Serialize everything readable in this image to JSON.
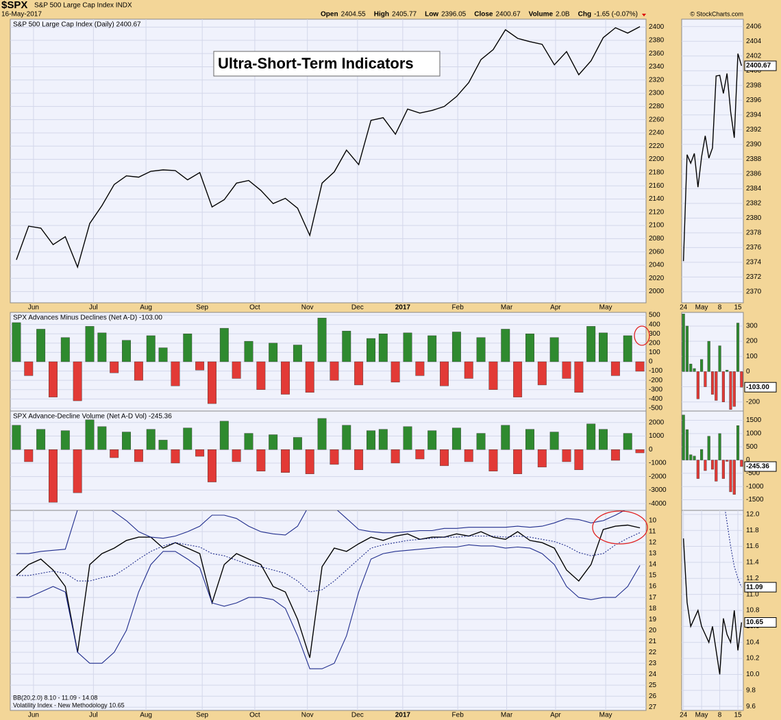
{
  "header": {
    "symbol": "$SPX",
    "name": "S&P 500 Large Cap Index INDX",
    "date": "16-May-2017",
    "copyright": "© StockCharts.com",
    "quote": [
      {
        "label": "Open",
        "value": "2404.55"
      },
      {
        "label": "High",
        "value": "2405.77"
      },
      {
        "label": "Low",
        "value": "2396.05"
      },
      {
        "label": "Close",
        "value": "2400.67"
      },
      {
        "label": "Volume",
        "value": "2.0B"
      },
      {
        "label": "Chg",
        "value": "-1.65 (-0.07%)"
      }
    ]
  },
  "chart_data": [
    {
      "type": "line",
      "title": "S&P 500 Large Cap Index (Daily) 2400.67",
      "annotation": "Ultra-Short-Term Indicators",
      "badges": [
        "2400.67"
      ],
      "ylim": [
        1983,
        2412
      ],
      "yticks": [
        2000,
        2020,
        2040,
        2060,
        2080,
        2100,
        2120,
        2140,
        2160,
        2180,
        2200,
        2220,
        2240,
        2260,
        2280,
        2300,
        2320,
        2340,
        2360,
        2380,
        2400
      ],
      "xlim": [
        -0.5,
        51.5
      ],
      "xticks": [
        {
          "value": 1.4,
          "label": "Jun"
        },
        {
          "value": 6.3,
          "label": "Jul"
        },
        {
          "value": 10.6,
          "label": "Aug"
        },
        {
          "value": 15.2,
          "label": "Sep"
        },
        {
          "value": 19.5,
          "label": "Oct"
        },
        {
          "value": 23.8,
          "label": "Nov"
        },
        {
          "value": 27.9,
          "label": "Dec"
        },
        {
          "value": 31.6,
          "label": "2017"
        },
        {
          "value": 36.1,
          "label": "Feb"
        },
        {
          "value": 40.1,
          "label": "Mar"
        },
        {
          "value": 44.1,
          "label": "Apr"
        },
        {
          "value": 48.2,
          "label": "May"
        }
      ],
      "grid": true,
      "series": [
        {
          "color": "#000000",
          "values": [
            2048,
            2099,
            2096,
            2071,
            2083,
            2037,
            2103,
            2130,
            2162,
            2175,
            2173,
            2182,
            2184,
            2183,
            2169,
            2180,
            2128,
            2139,
            2164,
            2168,
            2153,
            2133,
            2141,
            2126,
            2085,
            2164,
            2181,
            2214,
            2192,
            2259,
            2263,
            2238,
            2276,
            2270,
            2274,
            2280,
            2295,
            2316,
            2351,
            2366,
            2396,
            2383,
            2378,
            2374,
            2343,
            2363,
            2328,
            2349,
            2384,
            2399,
            2391,
            2400.67
          ]
        }
      ],
      "side": {
        "ylim": [
          2368.5,
          2407
        ],
        "yticks": [
          2370,
          2372,
          2374,
          2376,
          2378,
          2380,
          2382,
          2384,
          2386,
          2388,
          2390,
          2392,
          2394,
          2396,
          2398,
          2400,
          2402,
          2404,
          2406
        ],
        "xlim": [
          -0.5,
          16.5
        ],
        "series": [
          {
            "color": "#000000",
            "values": [
              2374.15,
              2388.61,
              2387.45,
              2388.77,
              2384.2,
              2388.33,
              2391.17,
              2388.13,
              2389.52,
              2399.29,
              2399.38,
              2396.92,
              2399.63,
              2394.44,
              2390.9,
              2402.32,
              2400.67
            ]
          }
        ]
      }
    },
    {
      "type": "bar",
      "title": "SPX Advances Minus Declines (Net A-D) -103.00",
      "badges": [
        "-103.00"
      ],
      "ylim": [
        -530,
        530
      ],
      "yticks": [
        -500,
        -400,
        -300,
        -200,
        -100,
        0,
        100,
        200,
        300,
        400,
        500
      ],
      "xlim": [
        -0.5,
        51.5
      ],
      "grid": true,
      "colors": {
        "positive": "#2f8a2f",
        "negative": "#e23a36"
      },
      "values": [
        420,
        -150,
        350,
        -380,
        260,
        -420,
        380,
        310,
        -120,
        230,
        -200,
        280,
        150,
        -260,
        300,
        -90,
        -450,
        360,
        -180,
        220,
        -300,
        200,
        -350,
        180,
        -330,
        470,
        -200,
        330,
        -250,
        250,
        300,
        -220,
        310,
        -150,
        280,
        -260,
        320,
        -180,
        260,
        -300,
        350,
        -380,
        300,
        -250,
        260,
        -180,
        -330,
        380,
        310,
        -150,
        280,
        -103
      ],
      "side": {
        "ylim": [
          -260,
          390
        ],
        "yticks": [
          -200,
          -100,
          0,
          100,
          200,
          300
        ],
        "xlim": [
          -0.5,
          16.5
        ],
        "values": [
          380,
          300,
          50,
          20,
          -180,
          80,
          -100,
          200,
          -150,
          -190,
          170,
          -200,
          10,
          -250,
          -230,
          320,
          -103
        ]
      }
    },
    {
      "type": "bar",
      "title": "SPX Advance-Decline Volume (Net A-D Vol) -245.36",
      "badges": [
        "-245.36"
      ],
      "ylim": [
        -4500,
        2850
      ],
      "yticks": [
        -4000,
        -3000,
        -2000,
        -1000,
        0,
        1000,
        2000
      ],
      "xlim": [
        -0.5,
        51.5
      ],
      "grid": true,
      "colors": {
        "positive": "#2f8a2f",
        "negative": "#e23a36"
      },
      "values": [
        1800,
        -900,
        1500,
        -3900,
        1400,
        -3200,
        2200,
        1700,
        -600,
        1300,
        -900,
        1500,
        700,
        -1000,
        1600,
        -500,
        -2400,
        2100,
        -900,
        1200,
        -1600,
        1100,
        -1700,
        900,
        -1800,
        2300,
        -1100,
        1800,
        -1500,
        1400,
        1500,
        -1000,
        1700,
        -700,
        1400,
        -1200,
        1600,
        -900,
        1200,
        -1600,
        1800,
        -1800,
        1500,
        -1300,
        1300,
        -900,
        -1500,
        1900,
        1500,
        -800,
        1200,
        -245.36
      ],
      "side": {
        "ylim": [
          -1900,
          1850
        ],
        "yticks": [
          -1500,
          -1000,
          -500,
          0,
          500,
          1000,
          1500
        ],
        "xlim": [
          -0.5,
          16.5
        ],
        "values": [
          1700,
          1150,
          200,
          150,
          -700,
          400,
          -400,
          900,
          -350,
          -800,
          1000,
          -700,
          -50,
          -1200,
          -1300,
          1300,
          -245.36
        ]
      }
    },
    {
      "type": "line",
      "legend": [
        "BB(20,2.0) 8.10 - 11.09 - 14.08",
        "Volatility Index - New Methodology 10.65"
      ],
      "badges": [
        "10.65",
        "11.09"
      ],
      "inverted": true,
      "ylim": [
        9.06,
        27.3
      ],
      "yticks": [
        10,
        11,
        12,
        13,
        14,
        15,
        16,
        17,
        18,
        19,
        20,
        21,
        22,
        23,
        24,
        25,
        26,
        27
      ],
      "xlim": [
        -0.5,
        51.5
      ],
      "grid": true,
      "xticks": [
        {
          "value": 1.4,
          "label": "Jun"
        },
        {
          "value": 6.3,
          "label": "Jul"
        },
        {
          "value": 10.6,
          "label": "Aug"
        },
        {
          "value": 15.2,
          "label": "Sep"
        },
        {
          "value": 19.5,
          "label": "Oct"
        },
        {
          "value": 23.8,
          "label": "Nov"
        },
        {
          "value": 27.9,
          "label": "Dec"
        },
        {
          "value": 31.6,
          "label": "2017"
        },
        {
          "value": 36.1,
          "label": "Feb"
        },
        {
          "value": 40.1,
          "label": "Mar"
        },
        {
          "value": 44.1,
          "label": "Apr"
        },
        {
          "value": 48.2,
          "label": "May"
        }
      ],
      "series": [
        {
          "color": "#000000",
          "values": [
            15,
            14,
            13.5,
            14.5,
            16,
            22,
            14,
            13,
            12.5,
            11.8,
            11.5,
            11.5,
            12.5,
            12,
            12.5,
            13,
            17.5,
            14,
            13,
            13.5,
            14,
            16,
            16.5,
            19,
            22.5,
            14.2,
            12.5,
            12.8,
            12.1,
            11.5,
            11.8,
            11.4,
            11.2,
            11.7,
            11.5,
            11.5,
            11.2,
            11.4,
            11,
            11.5,
            11.7,
            11,
            11.8,
            12,
            12.5,
            14.5,
            15.5,
            14,
            10.8,
            10.5,
            10.4,
            10.65
          ]
        },
        {
          "color": "#1f2c8c",
          "values": [
            13,
            13,
            12.8,
            12.7,
            12.6,
            9,
            8.5,
            8.5,
            9.2,
            10,
            11,
            11.5,
            11.6,
            11.4,
            11,
            10.5,
            9.5,
            9.5,
            9.8,
            10.5,
            11,
            11.2,
            11.3,
            10.5,
            8.5,
            8.5,
            8.8,
            9.8,
            10.8,
            11,
            11.1,
            11.1,
            11,
            10.9,
            10.9,
            10.7,
            10.7,
            10.6,
            10.6,
            10.6,
            10.6,
            10.5,
            10.6,
            10.5,
            10.2,
            9.8,
            9.9,
            10.2,
            10,
            9.5,
            8.9,
            8.1
          ]
        },
        {
          "color": "#1f2c8c",
          "dashed": true,
          "values": [
            15,
            15,
            14.8,
            14.6,
            14.8,
            15.5,
            15.5,
            15.2,
            15,
            14.3,
            13.5,
            12.8,
            12.3,
            12,
            12.2,
            12.4,
            13,
            13.2,
            13.6,
            14,
            14.2,
            14.5,
            14.8,
            15.5,
            16.5,
            16.3,
            15.5,
            14.5,
            13.5,
            12.5,
            12.2,
            12,
            11.8,
            11.7,
            11.6,
            11.5,
            11.5,
            11.4,
            11.4,
            11.4,
            11.5,
            11.4,
            11.5,
            11.7,
            11.9,
            12.3,
            12.9,
            13.2,
            13,
            12.2,
            11.6,
            11.09
          ]
        },
        {
          "color": "#1f2c8c",
          "values": [
            17,
            17,
            16.5,
            16,
            16.5,
            22,
            23,
            23,
            22,
            20,
            16.5,
            14,
            12.8,
            12.8,
            13.5,
            14.3,
            17.5,
            17.8,
            17.5,
            17,
            17,
            17.2,
            18,
            20.5,
            23.5,
            23.5,
            23,
            20.5,
            16.5,
            13.5,
            13,
            12.8,
            12.7,
            12.6,
            12.5,
            12.4,
            12.4,
            12.2,
            12.3,
            12.3,
            12.5,
            12.4,
            12.5,
            13,
            14,
            16,
            17,
            17.2,
            17,
            17,
            16,
            14.08
          ]
        }
      ],
      "side": {
        "ylim": [
          9.55,
          12.05
        ],
        "yticks": [
          9.6,
          9.8,
          {
            "value": 10,
            "label": "10.0"
          },
          10.2,
          10.4,
          10.6,
          10.8,
          {
            "value": 11,
            "label": "11.0"
          },
          11.2,
          11.4,
          11.6,
          11.8,
          {
            "value": 12,
            "label": "12.0"
          }
        ],
        "xlim": [
          -0.5,
          16.5
        ],
        "xticks": [
          {
            "value": 0,
            "label": "24"
          },
          {
            "value": 5,
            "label": "May"
          },
          {
            "value": 10,
            "label": "8"
          },
          {
            "value": 15,
            "label": "15"
          }
        ],
        "series": [
          {
            "color": "#000000",
            "values": [
              11.7,
              10.9,
              10.6,
              10.7,
              10.8,
              10.6,
              10.5,
              10.4,
              10.6,
              10.3,
              10,
              10.7,
              10.5,
              10.4,
              10.8,
              10.3,
              10.65
            ]
          },
          {
            "color": "#1f2c8c",
            "dashed": true,
            "values": [
              null,
              null,
              null,
              null,
              null,
              null,
              null,
              null,
              null,
              null,
              null,
              12.2,
              11.9,
              11.6,
              11.35,
              11.2,
              11.09
            ]
          }
        ]
      }
    }
  ]
}
